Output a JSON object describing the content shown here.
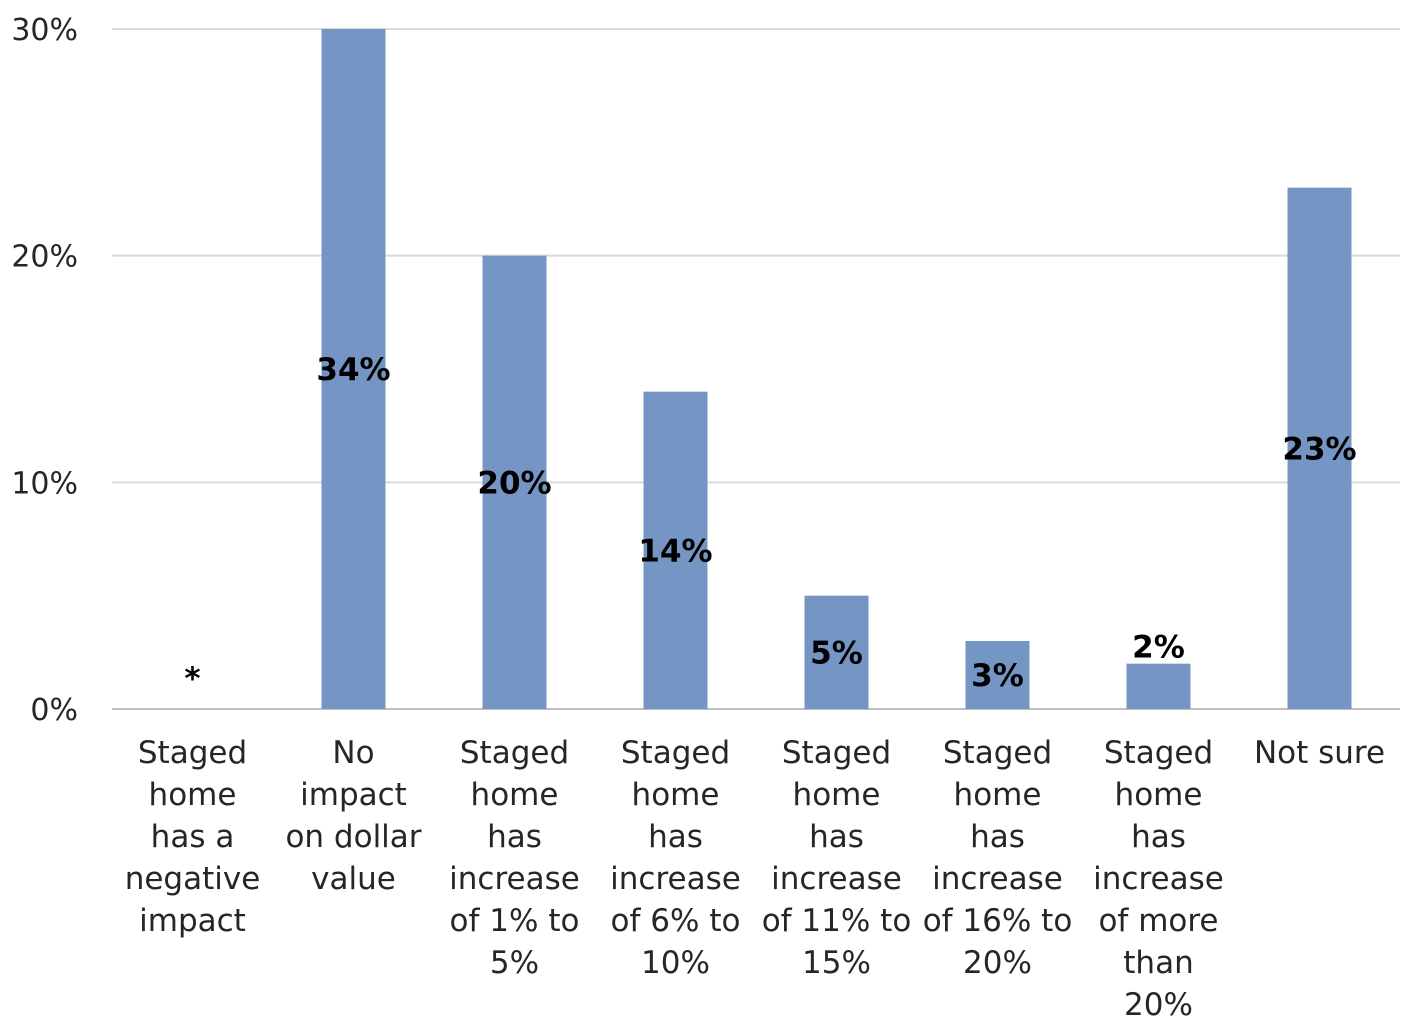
{
  "chart_data": {
    "type": "bar",
    "categories": [
      [
        "Staged",
        "home",
        "has a",
        "negative",
        "impact"
      ],
      [
        "No",
        "impact",
        "on dollar",
        "value"
      ],
      [
        "Staged",
        "home",
        "has",
        "increase",
        "of 1% to",
        "5%"
      ],
      [
        "Staged",
        "home",
        "has",
        "increase",
        "of 6% to",
        "10%"
      ],
      [
        "Staged",
        "home",
        "has",
        "increase",
        "of 11% to",
        "15%"
      ],
      [
        "Staged",
        "home",
        "has",
        "increase",
        "of 16% to",
        "20%"
      ],
      [
        "Staged",
        "home",
        "has",
        "increase",
        "of more",
        "than",
        "20%"
      ],
      [
        "Not sure"
      ]
    ],
    "values": [
      0,
      34,
      20,
      14,
      5,
      3,
      2,
      23
    ],
    "data_labels": [
      "*",
      "34%",
      "20%",
      "14%",
      "5%",
      "3%",
      "2%",
      "23%"
    ],
    "yticks": [
      "0%",
      "10%",
      "20%",
      "30%"
    ],
    "ylim": [
      0,
      30
    ],
    "bar_color": "#7596c4",
    "grid": true,
    "legend": "none"
  }
}
